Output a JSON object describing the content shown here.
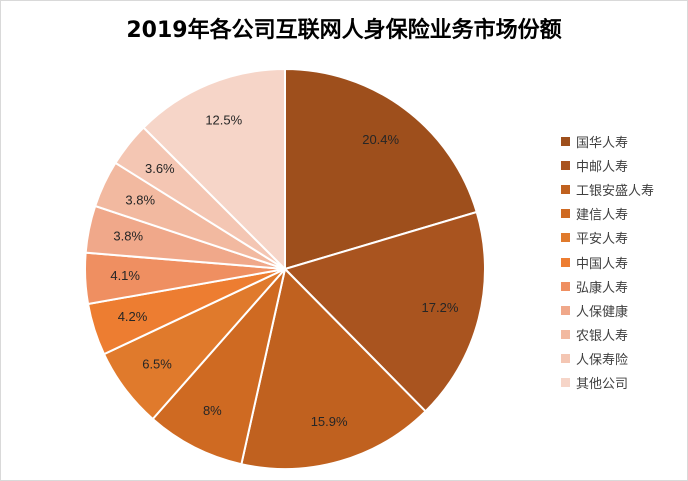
{
  "chart_data": {
    "type": "pie",
    "title": "2019年各公司互联网人身保险业务市场份额",
    "categories": [
      "国华人寿",
      "中邮人寿",
      "工银安盛人寿",
      "建信人寿",
      "平安人寿",
      "中国人寿",
      "弘康人寿",
      "人保健康",
      "农银人寿",
      "人保寿险",
      "其他公司"
    ],
    "values": [
      20.4,
      17.2,
      15.9,
      8,
      6.5,
      4.2,
      4.1,
      3.8,
      3.8,
      3.6,
      12.5
    ],
    "value_labels": [
      "20.4%",
      "17.2%",
      "15.9%",
      "8%",
      "6.5%",
      "4.2%",
      "4.1%",
      "3.8%",
      "3.8%",
      "3.6%",
      "12.5%"
    ],
    "colors": [
      "#9e4f1c",
      "#a9541f",
      "#c0611f",
      "#cf6a22",
      "#e07a2c",
      "#ed7d31",
      "#ef8f61",
      "#f0a88a",
      "#f2b9a0",
      "#f4c6b3",
      "#f6d5c8"
    ],
    "legend_position": "right",
    "start_angle_deg": 0,
    "direction": "clockwise"
  }
}
